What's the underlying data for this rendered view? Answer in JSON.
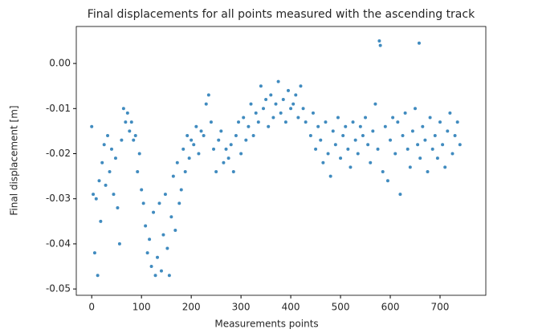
{
  "chart_data": {
    "type": "scatter",
    "title": "Final displacements for all points measured with the ascending track",
    "xlabel": "Measurements points",
    "ylabel": "Final displacement [m]",
    "color": "#1f77b4",
    "x": [
      0,
      3,
      6,
      9,
      12,
      15,
      18,
      21,
      25,
      28,
      32,
      36,
      40,
      44,
      48,
      52,
      56,
      60,
      64,
      68,
      72,
      76,
      80,
      84,
      88,
      92,
      96,
      100,
      104,
      108,
      112,
      116,
      120,
      124,
      128,
      132,
      136,
      140,
      144,
      148,
      152,
      156,
      160,
      164,
      168,
      172,
      176,
      180,
      184,
      188,
      192,
      196,
      200,
      205,
      210,
      215,
      220,
      225,
      230,
      235,
      240,
      245,
      250,
      255,
      260,
      265,
      270,
      275,
      280,
      285,
      290,
      295,
      300,
      305,
      310,
      315,
      320,
      325,
      330,
      335,
      340,
      345,
      350,
      355,
      360,
      365,
      370,
      375,
      380,
      385,
      390,
      395,
      400,
      405,
      410,
      415,
      420,
      425,
      430,
      440,
      445,
      450,
      455,
      460,
      465,
      470,
      475,
      480,
      485,
      490,
      495,
      500,
      505,
      510,
      515,
      520,
      525,
      530,
      535,
      540,
      545,
      550,
      555,
      560,
      565,
      570,
      575,
      578,
      580,
      585,
      590,
      595,
      600,
      605,
      610,
      615,
      620,
      625,
      630,
      635,
      640,
      645,
      650,
      655,
      658,
      660,
      665,
      670,
      675,
      680,
      685,
      690,
      695,
      700,
      705,
      710,
      715,
      720,
      725,
      730,
      735,
      740
    ],
    "values": [
      -0.014,
      -0.029,
      -0.042,
      -0.03,
      -0.047,
      -0.026,
      -0.035,
      -0.022,
      -0.018,
      -0.027,
      -0.016,
      -0.024,
      -0.019,
      -0.029,
      -0.021,
      -0.032,
      -0.04,
      -0.017,
      -0.01,
      -0.013,
      -0.011,
      -0.015,
      -0.013,
      -0.017,
      -0.016,
      -0.024,
      -0.02,
      -0.028,
      -0.031,
      -0.036,
      -0.042,
      -0.039,
      -0.045,
      -0.033,
      -0.047,
      -0.043,
      -0.031,
      -0.046,
      -0.038,
      -0.029,
      -0.041,
      -0.047,
      -0.034,
      -0.025,
      -0.037,
      -0.022,
      -0.031,
      -0.028,
      -0.019,
      -0.024,
      -0.016,
      -0.021,
      -0.017,
      -0.018,
      -0.014,
      -0.02,
      -0.015,
      -0.016,
      -0.009,
      -0.007,
      -0.013,
      -0.019,
      -0.024,
      -0.017,
      -0.015,
      -0.022,
      -0.019,
      -0.021,
      -0.018,
      -0.024,
      -0.016,
      -0.013,
      -0.02,
      -0.012,
      -0.017,
      -0.014,
      -0.009,
      -0.016,
      -0.011,
      -0.013,
      -0.005,
      -0.01,
      -0.008,
      -0.014,
      -0.007,
      -0.012,
      -0.009,
      -0.004,
      -0.011,
      -0.008,
      -0.013,
      -0.006,
      -0.01,
      -0.009,
      -0.007,
      -0.012,
      -0.005,
      -0.01,
      -0.013,
      -0.016,
      -0.011,
      -0.019,
      -0.014,
      -0.017,
      -0.022,
      -0.013,
      -0.02,
      -0.025,
      -0.015,
      -0.018,
      -0.012,
      -0.021,
      -0.016,
      -0.014,
      -0.019,
      -0.023,
      -0.013,
      -0.017,
      -0.02,
      -0.014,
      -0.016,
      -0.012,
      -0.018,
      -0.022,
      -0.015,
      -0.009,
      -0.019,
      0.005,
      0.004,
      -0.024,
      -0.014,
      -0.026,
      -0.017,
      -0.012,
      -0.02,
      -0.013,
      -0.029,
      -0.016,
      -0.011,
      -0.019,
      -0.023,
      -0.015,
      -0.01,
      -0.018,
      0.0045,
      -0.021,
      -0.014,
      -0.017,
      -0.024,
      -0.012,
      -0.019,
      -0.016,
      -0.021,
      -0.013,
      -0.018,
      -0.023,
      -0.015,
      -0.011,
      -0.02,
      -0.016,
      -0.013,
      -0.018
    ],
    "xlim": [
      -31,
      792
    ],
    "ylim": [
      -0.0514,
      0.0082
    ],
    "xticks": [
      0,
      100,
      200,
      300,
      400,
      500,
      600,
      700
    ],
    "yticks": [
      {
        "value": 0,
        "label": "0.00"
      },
      {
        "value": -0.01,
        "label": "-0.01"
      },
      {
        "value": -0.02,
        "label": "-0.02"
      },
      {
        "value": -0.03,
        "label": "-0.03"
      },
      {
        "value": -0.04,
        "label": "-0.04"
      },
      {
        "value": -0.05,
        "label": "-0.05"
      }
    ]
  }
}
